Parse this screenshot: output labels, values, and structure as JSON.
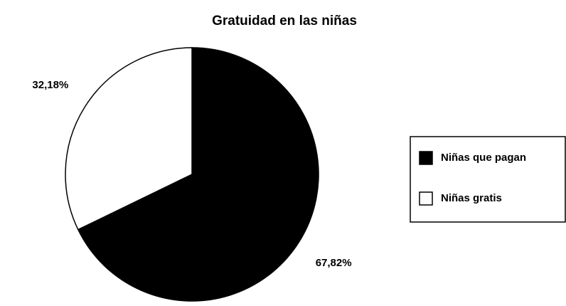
{
  "chart_data": {
    "type": "pie",
    "title": "Gratuidad en las niñas",
    "categories": [
      "Niñas que pagan",
      "Niñas gratis"
    ],
    "values": [
      67.82,
      32.18
    ],
    "value_labels": [
      "67,82%",
      "32,18%"
    ],
    "colors": [
      "#000000",
      "#ffffff"
    ],
    "legend": "right"
  }
}
